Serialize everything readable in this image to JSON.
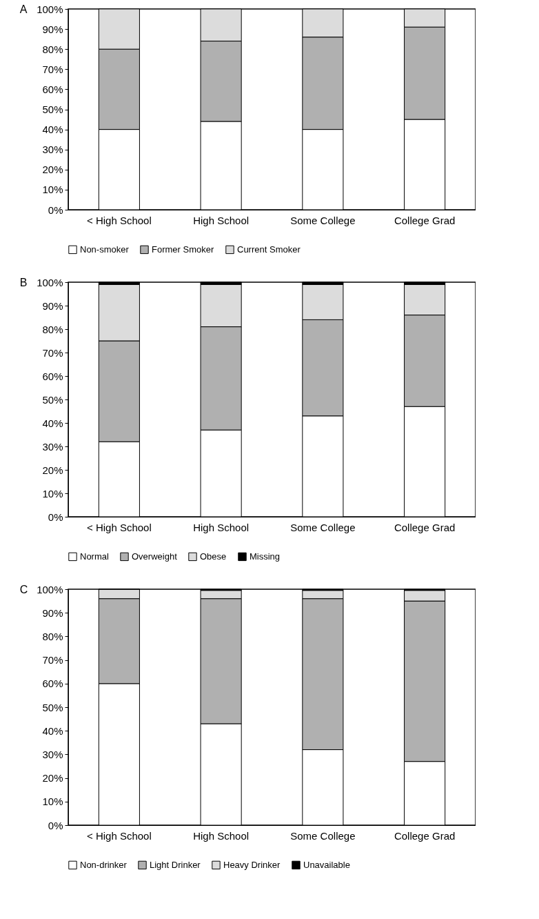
{
  "chart_data": [
    {
      "type": "bar",
      "title": "A",
      "stacked": true,
      "categories": [
        "< High School",
        "High School",
        "Some College",
        "College Grad"
      ],
      "ylim": [
        0,
        100
      ],
      "yticks": [
        {
          "value": 0,
          "label": "0%"
        },
        {
          "value": 10,
          "label": "10%"
        },
        {
          "value": 20,
          "label": "20%"
        },
        {
          "value": 30,
          "label": "30%"
        },
        {
          "value": 40,
          "label": "40%"
        },
        {
          "value": 50,
          "label": "50%"
        },
        {
          "value": 60,
          "label": "60%"
        },
        {
          "value": 70,
          "label": "70%"
        },
        {
          "value": 80,
          "label": "80%"
        },
        {
          "value": 90,
          "label": "90%"
        },
        {
          "value": 100,
          "label": "100%"
        }
      ],
      "legend": "bottom",
      "grid": false,
      "series": [
        {
          "name": "Non-smoker",
          "color": "#ffffff",
          "values": [
            40,
            44,
            40,
            45
          ]
        },
        {
          "name": "Former Smoker",
          "color": "#b0b0b0",
          "values": [
            40,
            40,
            46,
            46
          ]
        },
        {
          "name": "Current Smoker",
          "color": "#dcdcdc",
          "values": [
            20,
            16,
            14,
            9
          ]
        }
      ]
    },
    {
      "type": "bar",
      "title": "B",
      "stacked": true,
      "categories": [
        "< High School",
        "High School",
        "Some College",
        "College Grad"
      ],
      "ylim": [
        0,
        100
      ],
      "yticks": [
        {
          "value": 0,
          "label": "0%"
        },
        {
          "value": 10,
          "label": "10%"
        },
        {
          "value": 20,
          "label": "20%"
        },
        {
          "value": 30,
          "label": "30%"
        },
        {
          "value": 40,
          "label": "40%"
        },
        {
          "value": 50,
          "label": "50%"
        },
        {
          "value": 60,
          "label": "60%"
        },
        {
          "value": 70,
          "label": "70%"
        },
        {
          "value": 80,
          "label": "80%"
        },
        {
          "value": 90,
          "label": "90%"
        },
        {
          "value": 100,
          "label": "100%"
        }
      ],
      "legend": "bottom",
      "grid": false,
      "series": [
        {
          "name": "Normal",
          "color": "#ffffff",
          "values": [
            32,
            37,
            43,
            47
          ]
        },
        {
          "name": "Overweight",
          "color": "#b0b0b0",
          "values": [
            43,
            44,
            41,
            39
          ]
        },
        {
          "name": "Obese",
          "color": "#dcdcdc",
          "values": [
            24,
            18,
            15,
            13
          ]
        },
        {
          "name": "Missing",
          "color": "#000000",
          "values": [
            1,
            1,
            1,
            1
          ]
        }
      ]
    },
    {
      "type": "bar",
      "title": "C",
      "stacked": true,
      "categories": [
        "< High School",
        "High School",
        "Some College",
        "College Grad"
      ],
      "ylim": [
        0,
        100
      ],
      "yticks": [
        {
          "value": 0,
          "label": "0%"
        },
        {
          "value": 10,
          "label": "10%"
        },
        {
          "value": 20,
          "label": "20%"
        },
        {
          "value": 30,
          "label": "30%"
        },
        {
          "value": 40,
          "label": "40%"
        },
        {
          "value": 50,
          "label": "50%"
        },
        {
          "value": 60,
          "label": "60%"
        },
        {
          "value": 70,
          "label": "70%"
        },
        {
          "value": 80,
          "label": "80%"
        },
        {
          "value": 90,
          "label": "90%"
        },
        {
          "value": 100,
          "label": "100%"
        }
      ],
      "legend": "bottom",
      "grid": false,
      "series": [
        {
          "name": "Non-drinker",
          "color": "#ffffff",
          "values": [
            60,
            43,
            32,
            27
          ]
        },
        {
          "name": "Light Drinker",
          "color": "#b0b0b0",
          "values": [
            36,
            53,
            64,
            68
          ]
        },
        {
          "name": "Heavy Drinker",
          "color": "#dcdcdc",
          "values": [
            4,
            3.5,
            3.5,
            4.5
          ]
        },
        {
          "name": "Unavailable",
          "color": "#000000",
          "values": [
            0,
            0.5,
            0.5,
            0.5
          ]
        }
      ]
    }
  ]
}
